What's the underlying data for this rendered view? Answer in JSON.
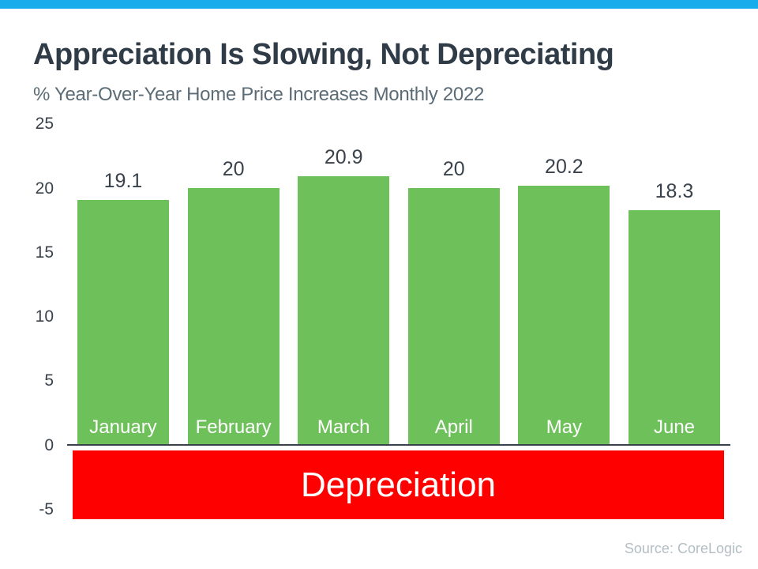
{
  "page": {
    "title": "Appreciation Is Slowing, Not Depreciating",
    "subtitle": "% Year-Over-Year Home Price Increases Monthly 2022",
    "source": "Source: CoreLogic"
  },
  "colors": {
    "top_bar": "#18ACEC",
    "bar_green": "#6EC15A",
    "depreciation_red": "#FF0000",
    "title_text": "#2F3B47",
    "subtitle_text": "#5B6C76",
    "axis_text": "#39424B",
    "bar_category_text": "#FFFFFF",
    "value_label_text": "#39424B",
    "source_text": "#B3BEC4"
  },
  "depreciation_band": {
    "label": "Depreciation"
  },
  "chart_data": {
    "type": "bar",
    "title": "Appreciation Is Slowing, Not Depreciating",
    "subtitle": "% Year-Over-Year Home Price Increases Monthly 2022",
    "categories": [
      "January",
      "February",
      "March",
      "April",
      "May",
      "June"
    ],
    "values": [
      19.1,
      20,
      20.9,
      20,
      20.2,
      18.3
    ],
    "value_labels": [
      "19.1",
      "20",
      "20.9",
      "20",
      "20.2",
      "18.3"
    ],
    "xlabel": "",
    "ylabel": "",
    "y_ticks": [
      25,
      20,
      15,
      10,
      5,
      0,
      -5
    ],
    "ylim": [
      -5.5,
      25
    ],
    "grid": false,
    "legend": false,
    "annotation": "Depreciation",
    "source": "Source: CoreLogic"
  }
}
